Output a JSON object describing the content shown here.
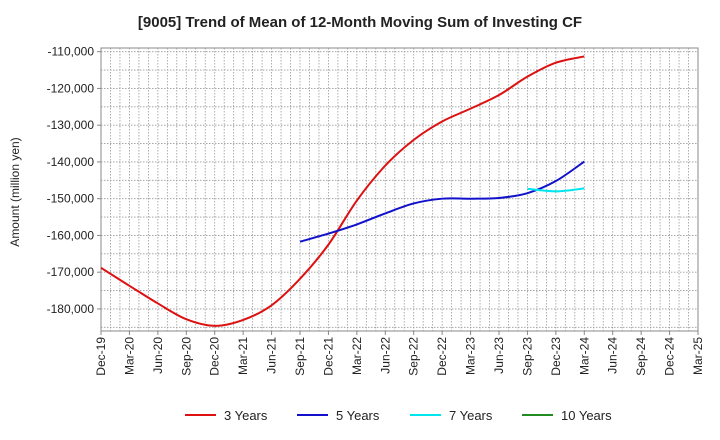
{
  "chart_data": {
    "type": "line",
    "title": "[9005]  Trend of Mean of 12-Month Moving Sum of Investing CF",
    "xlabel": "",
    "ylabel": "Amount (million yen)",
    "ylim": [
      -186000,
      -109000
    ],
    "yticks": [
      -110000,
      -120000,
      -130000,
      -140000,
      -150000,
      -160000,
      -170000,
      -180000
    ],
    "ytick_labels": [
      "-110,000",
      "-120,000",
      "-130,000",
      "-140,000",
      "-150,000",
      "-160,000",
      "-170,000",
      "-180,000"
    ],
    "x_categories": [
      "Dec-19",
      "Mar-20",
      "Jun-20",
      "Sep-20",
      "Dec-20",
      "Mar-21",
      "Jun-21",
      "Sep-21",
      "Dec-21",
      "Mar-22",
      "Jun-22",
      "Sep-22",
      "Dec-22",
      "Mar-23",
      "Jun-23",
      "Sep-23",
      "Dec-23",
      "Mar-24",
      "Jun-24",
      "Sep-24",
      "Dec-24",
      "Mar-25"
    ],
    "grid": true,
    "legend_position": "bottom",
    "series": [
      {
        "name": "3 Years",
        "color": "#dd1111",
        "x": [
          "Dec-19",
          "Mar-20",
          "Jun-20",
          "Sep-20",
          "Dec-20",
          "Mar-21",
          "Jun-21",
          "Sep-21",
          "Dec-21",
          "Mar-22",
          "Jun-22",
          "Sep-22",
          "Dec-22",
          "Mar-23",
          "Jun-23",
          "Sep-23",
          "Dec-23",
          "Mar-24"
        ],
        "values": [
          -168800,
          -173700,
          -178500,
          -182800,
          -184600,
          -183000,
          -179000,
          -171800,
          -162500,
          -150500,
          -141000,
          -134000,
          -129000,
          -125500,
          -121800,
          -116800,
          -113000,
          -111300
        ]
      },
      {
        "name": "5 Years",
        "color": "#1111cc",
        "x": [
          "Sep-21",
          "Dec-21",
          "Mar-22",
          "Jun-22",
          "Sep-22",
          "Dec-22",
          "Mar-23",
          "Jun-23",
          "Sep-23",
          "Dec-23",
          "Mar-24"
        ],
        "values": [
          -161700,
          -159500,
          -157000,
          -154000,
          -151300,
          -150000,
          -150000,
          -149800,
          -148500,
          -145200,
          -139900
        ]
      },
      {
        "name": "7 Years",
        "color": "#00e5ee",
        "x": [
          "Sep-23",
          "Dec-23",
          "Mar-24"
        ],
        "values": [
          -147300,
          -148000,
          -147200
        ]
      },
      {
        "name": "10 Years",
        "color": "#228b22",
        "x": [],
        "values": []
      }
    ]
  }
}
